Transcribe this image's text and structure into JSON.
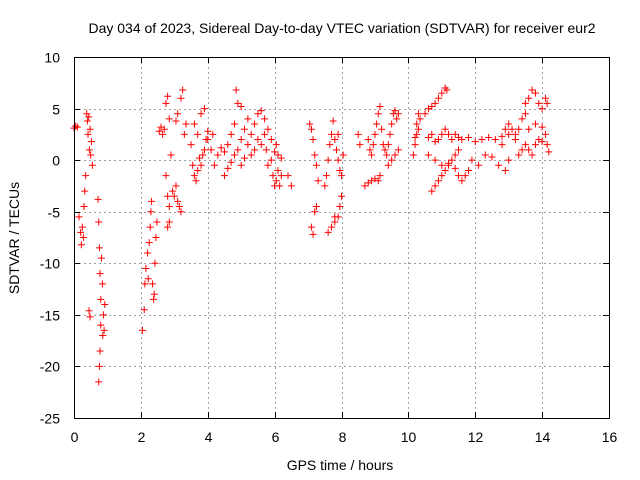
{
  "chart_data": {
    "type": "scatter",
    "title": "Day 034 of 2023, Sidereal Day-to-day VTEC variation (SDTVAR) for receiver eur2",
    "xlabel": "GPS time / hours",
    "ylabel": "SDTVAR / TECUs",
    "xlim": [
      0,
      16
    ],
    "ylim": [
      -25,
      10
    ],
    "xticks": [
      0,
      2,
      4,
      6,
      8,
      10,
      12,
      14,
      16
    ],
    "yticks": [
      10,
      5,
      0,
      -5,
      -10,
      -15,
      -20,
      -25
    ],
    "xtick_labels": [
      "0",
      "2",
      "4",
      "6",
      "8",
      "10",
      "12",
      "14",
      "16"
    ],
    "ytick_labels": [
      "10",
      "5",
      "0",
      "-5",
      "-10",
      "-15",
      "-20",
      "-25"
    ],
    "grid": true,
    "marker": "plus",
    "color": "#ff0000",
    "series": [
      {
        "name": "eur2",
        "points": [
          [
            0.0,
            3.1
          ],
          [
            0.05,
            3.3
          ],
          [
            0.1,
            3.2
          ],
          [
            0.15,
            -5.5
          ],
          [
            0.2,
            -7.0
          ],
          [
            0.22,
            -8.2
          ],
          [
            0.25,
            -6.5
          ],
          [
            0.28,
            -7.5
          ],
          [
            0.3,
            -4.5
          ],
          [
            0.32,
            -3.0
          ],
          [
            0.35,
            -1.5
          ],
          [
            0.38,
            4.5
          ],
          [
            0.4,
            3.8
          ],
          [
            0.42,
            2.5
          ],
          [
            0.44,
            4.2
          ],
          [
            0.46,
            1.0
          ],
          [
            0.48,
            3.0
          ],
          [
            0.5,
            0.5
          ],
          [
            0.52,
            1.8
          ],
          [
            0.55,
            -0.5
          ],
          [
            0.45,
            -14.6
          ],
          [
            0.48,
            -15.2
          ],
          [
            0.72,
            -3.8
          ],
          [
            0.74,
            -6.0
          ],
          [
            0.76,
            -8.5
          ],
          [
            0.78,
            -11.0
          ],
          [
            0.8,
            -13.5
          ],
          [
            0.8,
            -16.0
          ],
          [
            0.78,
            -18.5
          ],
          [
            0.76,
            -20.0
          ],
          [
            0.74,
            -21.5
          ],
          [
            0.82,
            -9.5
          ],
          [
            0.85,
            -12.0
          ],
          [
            0.88,
            -15.0
          ],
          [
            0.9,
            -16.5
          ],
          [
            0.92,
            -14.0
          ],
          [
            0.86,
            -17.0
          ],
          [
            2.05,
            -16.5
          ],
          [
            2.1,
            -14.5
          ],
          [
            2.12,
            -12.0
          ],
          [
            2.15,
            -10.5
          ],
          [
            2.2,
            -9.0
          ],
          [
            2.22,
            -11.5
          ],
          [
            2.25,
            -8.0
          ],
          [
            2.28,
            -6.5
          ],
          [
            2.3,
            -5.0
          ],
          [
            2.32,
            -4.0
          ],
          [
            2.35,
            -12.0
          ],
          [
            2.38,
            -13.5
          ],
          [
            2.4,
            -13.0
          ],
          [
            2.42,
            -10.0
          ],
          [
            2.45,
            -7.5
          ],
          [
            2.48,
            -6.0
          ],
          [
            2.55,
            2.8
          ],
          [
            2.6,
            3.2
          ],
          [
            2.65,
            2.5
          ],
          [
            2.7,
            3.0
          ],
          [
            2.75,
            -1.5
          ],
          [
            2.8,
            -3.5
          ],
          [
            2.85,
            -4.5
          ],
          [
            2.8,
            -6.5
          ],
          [
            2.85,
            -6.0
          ],
          [
            2.9,
            0.5
          ],
          [
            2.75,
            5.5
          ],
          [
            2.8,
            6.2
          ],
          [
            2.85,
            4.0
          ],
          [
            2.95,
            -3.0
          ],
          [
            3.0,
            -3.5
          ],
          [
            3.05,
            -2.5
          ],
          [
            3.1,
            -4.0
          ],
          [
            3.15,
            -4.5
          ],
          [
            3.2,
            -5.0
          ],
          [
            3.05,
            3.8
          ],
          [
            3.1,
            4.5
          ],
          [
            3.2,
            6.0
          ],
          [
            3.25,
            6.8
          ],
          [
            3.3,
            2.5
          ],
          [
            3.35,
            3.5
          ],
          [
            3.5,
            1.5
          ],
          [
            3.55,
            -0.5
          ],
          [
            3.6,
            -1.5
          ],
          [
            3.65,
            -2.0
          ],
          [
            3.7,
            -1.0
          ],
          [
            3.75,
            0.2
          ],
          [
            3.8,
            -0.5
          ],
          [
            3.85,
            0.5
          ],
          [
            3.9,
            1.0
          ],
          [
            3.95,
            2.0
          ],
          [
            3.6,
            3.5
          ],
          [
            3.7,
            2.5
          ],
          [
            3.8,
            4.5
          ],
          [
            3.9,
            5.0
          ],
          [
            4.0,
            2.0
          ],
          [
            4.1,
            1.0
          ],
          [
            4.15,
            2.5
          ],
          [
            4.0,
            2.8
          ],
          [
            4.2,
            -0.5
          ],
          [
            4.3,
            0.5
          ],
          [
            4.4,
            1.2
          ],
          [
            4.5,
            0.8
          ],
          [
            4.6,
            1.5
          ],
          [
            4.7,
            2.5
          ],
          [
            4.8,
            3.5
          ],
          [
            4.9,
            5.5
          ],
          [
            4.85,
            6.8
          ],
          [
            5.0,
            5.2
          ],
          [
            4.5,
            -1.5
          ],
          [
            4.6,
            -0.8
          ],
          [
            4.7,
            -0.2
          ],
          [
            4.8,
            0.5
          ],
          [
            4.9,
            1.0
          ],
          [
            5.0,
            2.0
          ],
          [
            5.1,
            3.0
          ],
          [
            5.2,
            4.0
          ],
          [
            5.0,
            -0.5
          ],
          [
            5.1,
            0.2
          ],
          [
            5.2,
            1.5
          ],
          [
            5.3,
            2.5
          ],
          [
            5.4,
            3.5
          ],
          [
            5.5,
            4.5
          ],
          [
            5.6,
            4.8
          ],
          [
            5.7,
            4.0
          ],
          [
            5.3,
            0.5
          ],
          [
            5.4,
            1.0
          ],
          [
            5.5,
            2.0
          ],
          [
            5.6,
            1.5
          ],
          [
            5.7,
            2.5
          ],
          [
            5.8,
            3.0
          ],
          [
            5.9,
            2.0
          ],
          [
            5.75,
            1.0
          ],
          [
            5.8,
            -0.5
          ],
          [
            5.9,
            0.0
          ],
          [
            5.95,
            -1.5
          ],
          [
            6.0,
            -2.5
          ],
          [
            6.05,
            -2.0
          ],
          [
            6.1,
            -1.0
          ],
          [
            6.15,
            -2.5
          ],
          [
            6.2,
            -1.5
          ],
          [
            6.0,
            0.8
          ],
          [
            6.05,
            1.5
          ],
          [
            6.1,
            0.5
          ],
          [
            6.2,
            0.2
          ],
          [
            6.4,
            -1.5
          ],
          [
            6.5,
            -2.5
          ],
          [
            7.05,
            3.5
          ],
          [
            7.1,
            3.0
          ],
          [
            7.15,
            2.0
          ],
          [
            7.2,
            0.5
          ],
          [
            7.25,
            -0.5
          ],
          [
            7.3,
            -2.0
          ],
          [
            7.25,
            -4.5
          ],
          [
            7.2,
            -5.0
          ],
          [
            7.1,
            -6.5
          ],
          [
            7.15,
            -7.2
          ],
          [
            7.5,
            -2.5
          ],
          [
            7.55,
            -1.5
          ],
          [
            7.6,
            0.0
          ],
          [
            7.65,
            1.5
          ],
          [
            7.7,
            2.5
          ],
          [
            7.75,
            3.8
          ],
          [
            7.8,
            2.0
          ],
          [
            7.85,
            1.0
          ],
          [
            7.9,
            0.0
          ],
          [
            7.95,
            -1.0
          ],
          [
            7.8,
            -5.5
          ],
          [
            7.6,
            -7.0
          ],
          [
            7.7,
            -6.5
          ],
          [
            7.8,
            -6.0
          ],
          [
            7.9,
            -5.5
          ],
          [
            7.95,
            -4.5
          ],
          [
            8.0,
            -3.5
          ],
          [
            8.0,
            -1.5
          ],
          [
            8.05,
            0.5
          ],
          [
            7.9,
            2.5
          ],
          [
            8.5,
            2.5
          ],
          [
            8.55,
            1.5
          ],
          [
            8.8,
            2.0
          ],
          [
            8.85,
            1.0
          ],
          [
            8.9,
            0.5
          ],
          [
            8.95,
            1.5
          ],
          [
            9.0,
            2.5
          ],
          [
            9.05,
            3.5
          ],
          [
            9.1,
            4.5
          ],
          [
            9.15,
            5.2
          ],
          [
            9.2,
            3.0
          ],
          [
            9.25,
            1.5
          ],
          [
            8.7,
            -2.5
          ],
          [
            8.8,
            -2.2
          ],
          [
            8.9,
            -2.0
          ],
          [
            9.0,
            -1.8
          ],
          [
            9.1,
            -2.0
          ],
          [
            9.15,
            -1.5
          ],
          [
            9.3,
            1.0
          ],
          [
            9.35,
            0.5
          ],
          [
            9.4,
            1.5
          ],
          [
            9.45,
            2.5
          ],
          [
            9.5,
            3.5
          ],
          [
            9.55,
            4.5
          ],
          [
            9.6,
            4.8
          ],
          [
            9.65,
            4.0
          ],
          [
            9.7,
            4.5
          ],
          [
            9.4,
            -0.5
          ],
          [
            9.5,
            0.0
          ],
          [
            9.6,
            0.5
          ],
          [
            9.7,
            1.0
          ],
          [
            10.15,
            0.5
          ],
          [
            10.2,
            1.5
          ],
          [
            10.25,
            2.5
          ],
          [
            10.3,
            3.0
          ],
          [
            10.35,
            4.0
          ],
          [
            10.3,
            4.5
          ],
          [
            10.25,
            3.5
          ],
          [
            10.2,
            2.2
          ],
          [
            10.5,
            4.5
          ],
          [
            10.6,
            5.0
          ],
          [
            10.7,
            5.2
          ],
          [
            10.8,
            5.5
          ],
          [
            10.9,
            6.0
          ],
          [
            11.0,
            6.5
          ],
          [
            11.1,
            7.0
          ],
          [
            11.15,
            6.8
          ],
          [
            10.6,
            2.2
          ],
          [
            10.7,
            2.5
          ],
          [
            10.8,
            1.8
          ],
          [
            10.9,
            2.0
          ],
          [
            11.0,
            2.5
          ],
          [
            11.1,
            3.0
          ],
          [
            11.2,
            2.5
          ],
          [
            11.3,
            2.0
          ],
          [
            11.4,
            2.5
          ],
          [
            11.5,
            2.2
          ],
          [
            10.7,
            -3.0
          ],
          [
            10.8,
            -2.5
          ],
          [
            10.9,
            -2.0
          ],
          [
            11.0,
            -1.5
          ],
          [
            11.1,
            -1.0
          ],
          [
            11.2,
            -0.5
          ],
          [
            11.3,
            0.0
          ],
          [
            11.4,
            0.5
          ],
          [
            11.5,
            1.0
          ],
          [
            10.6,
            0.5
          ],
          [
            10.8,
            0.0
          ],
          [
            11.0,
            -0.5
          ],
          [
            11.2,
            -0.3
          ],
          [
            11.4,
            -0.8
          ],
          [
            11.5,
            -1.5
          ],
          [
            11.6,
            -2.0
          ],
          [
            11.7,
            -1.5
          ],
          [
            11.8,
            -1.0
          ],
          [
            11.6,
            2.0
          ],
          [
            11.8,
            2.2
          ],
          [
            12.0,
            1.8
          ],
          [
            12.2,
            2.0
          ],
          [
            12.4,
            2.2
          ],
          [
            12.6,
            2.0
          ],
          [
            12.8,
            2.3
          ],
          [
            13.0,
            2.5
          ],
          [
            13.2,
            2.0
          ],
          [
            11.9,
            0.0
          ],
          [
            12.1,
            -0.5
          ],
          [
            12.3,
            0.5
          ],
          [
            12.5,
            0.3
          ],
          [
            12.7,
            -0.5
          ],
          [
            12.9,
            -1.0
          ],
          [
            13.0,
            0.0
          ],
          [
            12.8,
            1.5
          ],
          [
            12.9,
            3.0
          ],
          [
            13.0,
            3.5
          ],
          [
            13.1,
            3.0
          ],
          [
            13.2,
            2.5
          ],
          [
            13.3,
            3.0
          ],
          [
            13.4,
            4.0
          ],
          [
            13.5,
            4.5
          ],
          [
            13.3,
            0.5
          ],
          [
            13.4,
            1.0
          ],
          [
            13.5,
            1.5
          ],
          [
            13.6,
            1.0
          ],
          [
            13.7,
            0.5
          ],
          [
            13.8,
            1.5
          ],
          [
            13.9,
            2.0
          ],
          [
            14.0,
            1.8
          ],
          [
            13.5,
            5.5
          ],
          [
            13.6,
            6.0
          ],
          [
            13.7,
            6.8
          ],
          [
            13.8,
            6.5
          ],
          [
            13.9,
            5.5
          ],
          [
            14.0,
            5.0
          ],
          [
            14.1,
            6.0
          ],
          [
            14.15,
            5.5
          ],
          [
            13.6,
            3.0
          ],
          [
            13.8,
            3.5
          ],
          [
            14.0,
            3.2
          ],
          [
            14.1,
            2.5
          ],
          [
            14.15,
            1.5
          ],
          [
            14.2,
            0.8
          ]
        ]
      }
    ]
  }
}
